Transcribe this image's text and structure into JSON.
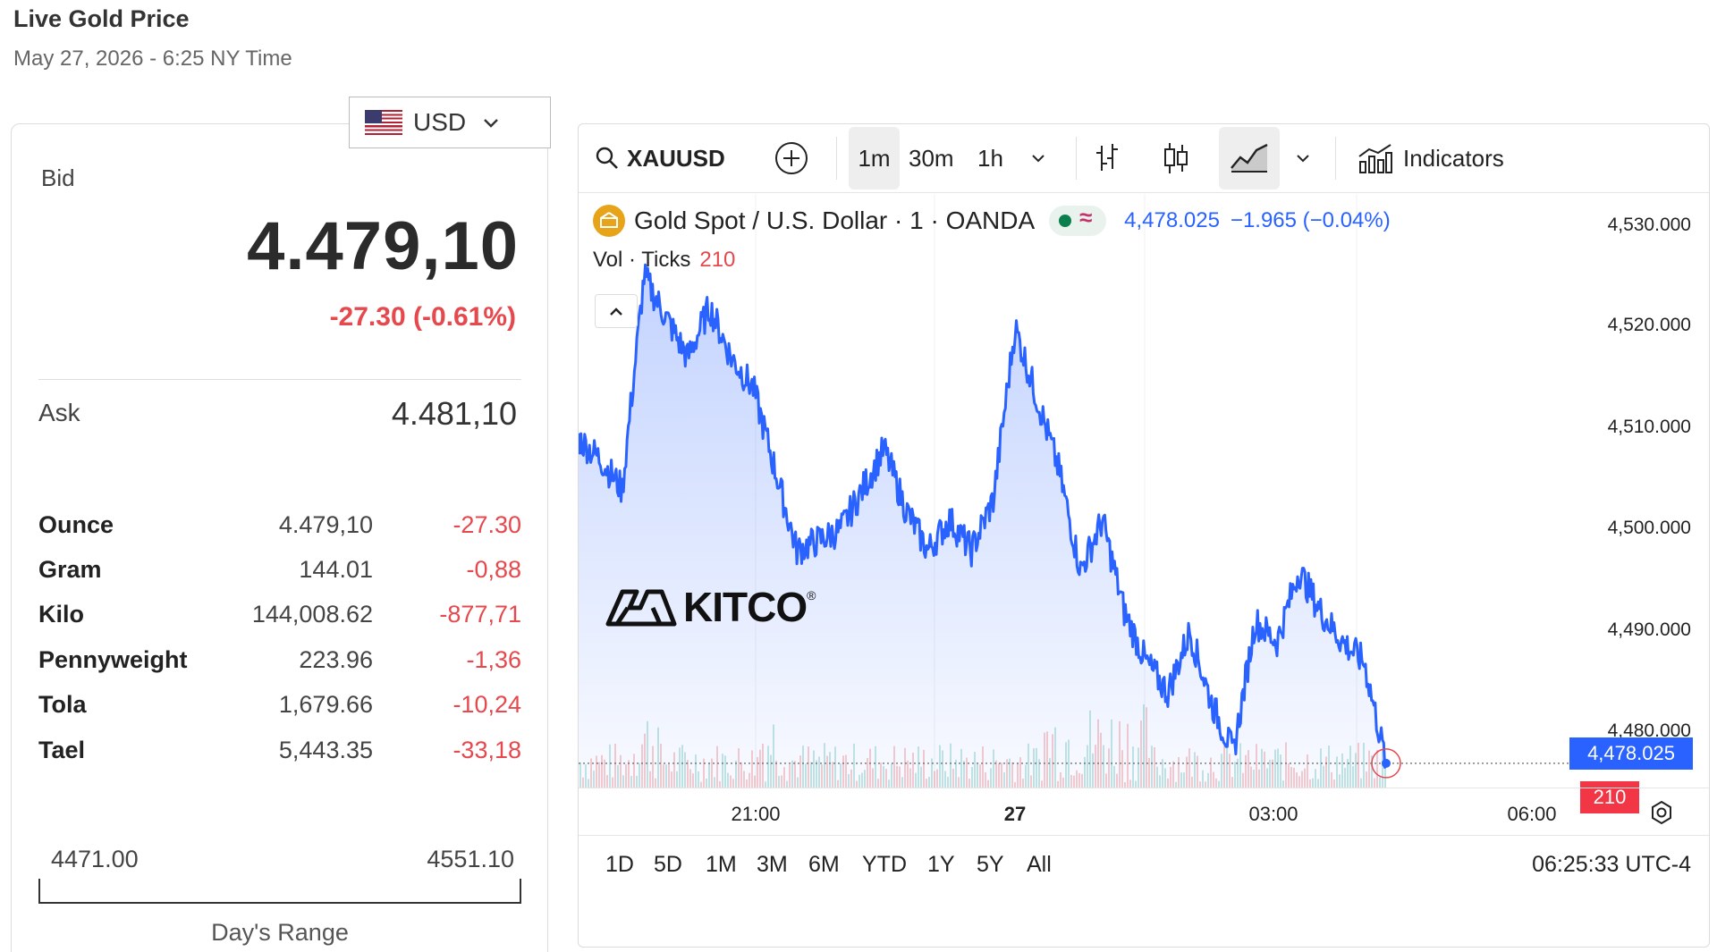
{
  "header": {
    "title": "Live Gold Price",
    "timestamp": "May 27, 2026 - 6:25 NY Time"
  },
  "currency": {
    "selected": "USD",
    "flag_icon": "us-flag-icon"
  },
  "quote": {
    "bid_label": "Bid",
    "bid": "4.479,10",
    "change": "-27.30 (-0.61%)",
    "ask_label": "Ask",
    "ask": "4.481,10"
  },
  "units": [
    {
      "name": "Ounce",
      "price": "4.479,10",
      "change": "-27.30"
    },
    {
      "name": "Gram",
      "price": "144.01",
      "change": "-0,88"
    },
    {
      "name": "Kilo",
      "price": "144,008.62",
      "change": "-877,71"
    },
    {
      "name": "Pennyweight",
      "price": "223.96",
      "change": "-1,36"
    },
    {
      "name": "Tola",
      "price": "1,679.66",
      "change": "-10,24"
    },
    {
      "name": "Tael",
      "price": "5,443.35",
      "change": "-33,18"
    }
  ],
  "day_range": {
    "low": "4471.00",
    "high": "4551.10",
    "caption": "Day's Range"
  },
  "chart": {
    "toolbar": {
      "symbol": "XAUUSD",
      "intervals": [
        "1m",
        "30m",
        "1h"
      ],
      "active_interval": "1m",
      "indicators_label": "Indicators"
    },
    "legend": {
      "title": "Gold Spot / U.S. Dollar · 1 · OANDA",
      "status_symbol": "≈",
      "price": "4,478.025",
      "change": "−1.965 (−0.04%)"
    },
    "volume_legend": {
      "label": "Vol · Ticks",
      "value": "210"
    },
    "price_axis": [
      "4,530.000",
      "4,520.000",
      "4,510.000",
      "4,500.000",
      "4,490.000",
      "4,480.000"
    ],
    "last_price_label": "4,478.025",
    "last_volume_label": "210",
    "time_axis": [
      "21:00",
      "27",
      "03:00",
      "06:00"
    ],
    "ranges": [
      "1D",
      "5D",
      "1M",
      "3M",
      "6M",
      "YTD",
      "1Y",
      "5Y",
      "All"
    ],
    "clock": "06:25:33 UTC-4",
    "watermark": "KITCO",
    "colors": {
      "line": "#2962ff",
      "down": "#e5484d",
      "up": "#26a69a"
    }
  },
  "chart_data": {
    "type": "area",
    "title": "Gold Spot / U.S. Dollar · 1 · OANDA",
    "ylim": [
      4475,
      4533
    ],
    "x_ticks": [
      "21:00",
      "27",
      "03:00",
      "06:00"
    ],
    "series": [
      {
        "name": "Gold Spot / U.S. Dollar",
        "x": [
          "18:20",
          "18:40",
          "19:00",
          "19:20",
          "19:40",
          "20:00",
          "20:20",
          "20:40",
          "21:00",
          "21:20",
          "21:40",
          "22:00",
          "22:20",
          "22:40",
          "23:00",
          "23:20",
          "23:40",
          "00:00",
          "00:20",
          "00:40",
          "01:00",
          "01:20",
          "01:40",
          "02:00",
          "02:20",
          "02:40",
          "03:00",
          "03:20",
          "03:40",
          "04:00",
          "04:20",
          "04:40",
          "05:00",
          "05:20",
          "05:40",
          "06:00",
          "06:20",
          "06:25"
        ],
        "values": [
          4510,
          4508,
          4505,
          4526,
          4522,
          4518,
          4523,
          4518,
          4515,
          4507,
          4499,
          4500,
          4501,
          4505,
          4509,
          4503,
          4499,
          4502,
          4499,
          4504,
          4521,
          4514,
          4507,
          4497,
          4502,
          4493,
          4488,
          4485,
          4491,
          4484,
          4479,
          4492,
          4490,
          4497,
          4493,
          4490,
          4488,
          4478.025
        ]
      }
    ]
  }
}
